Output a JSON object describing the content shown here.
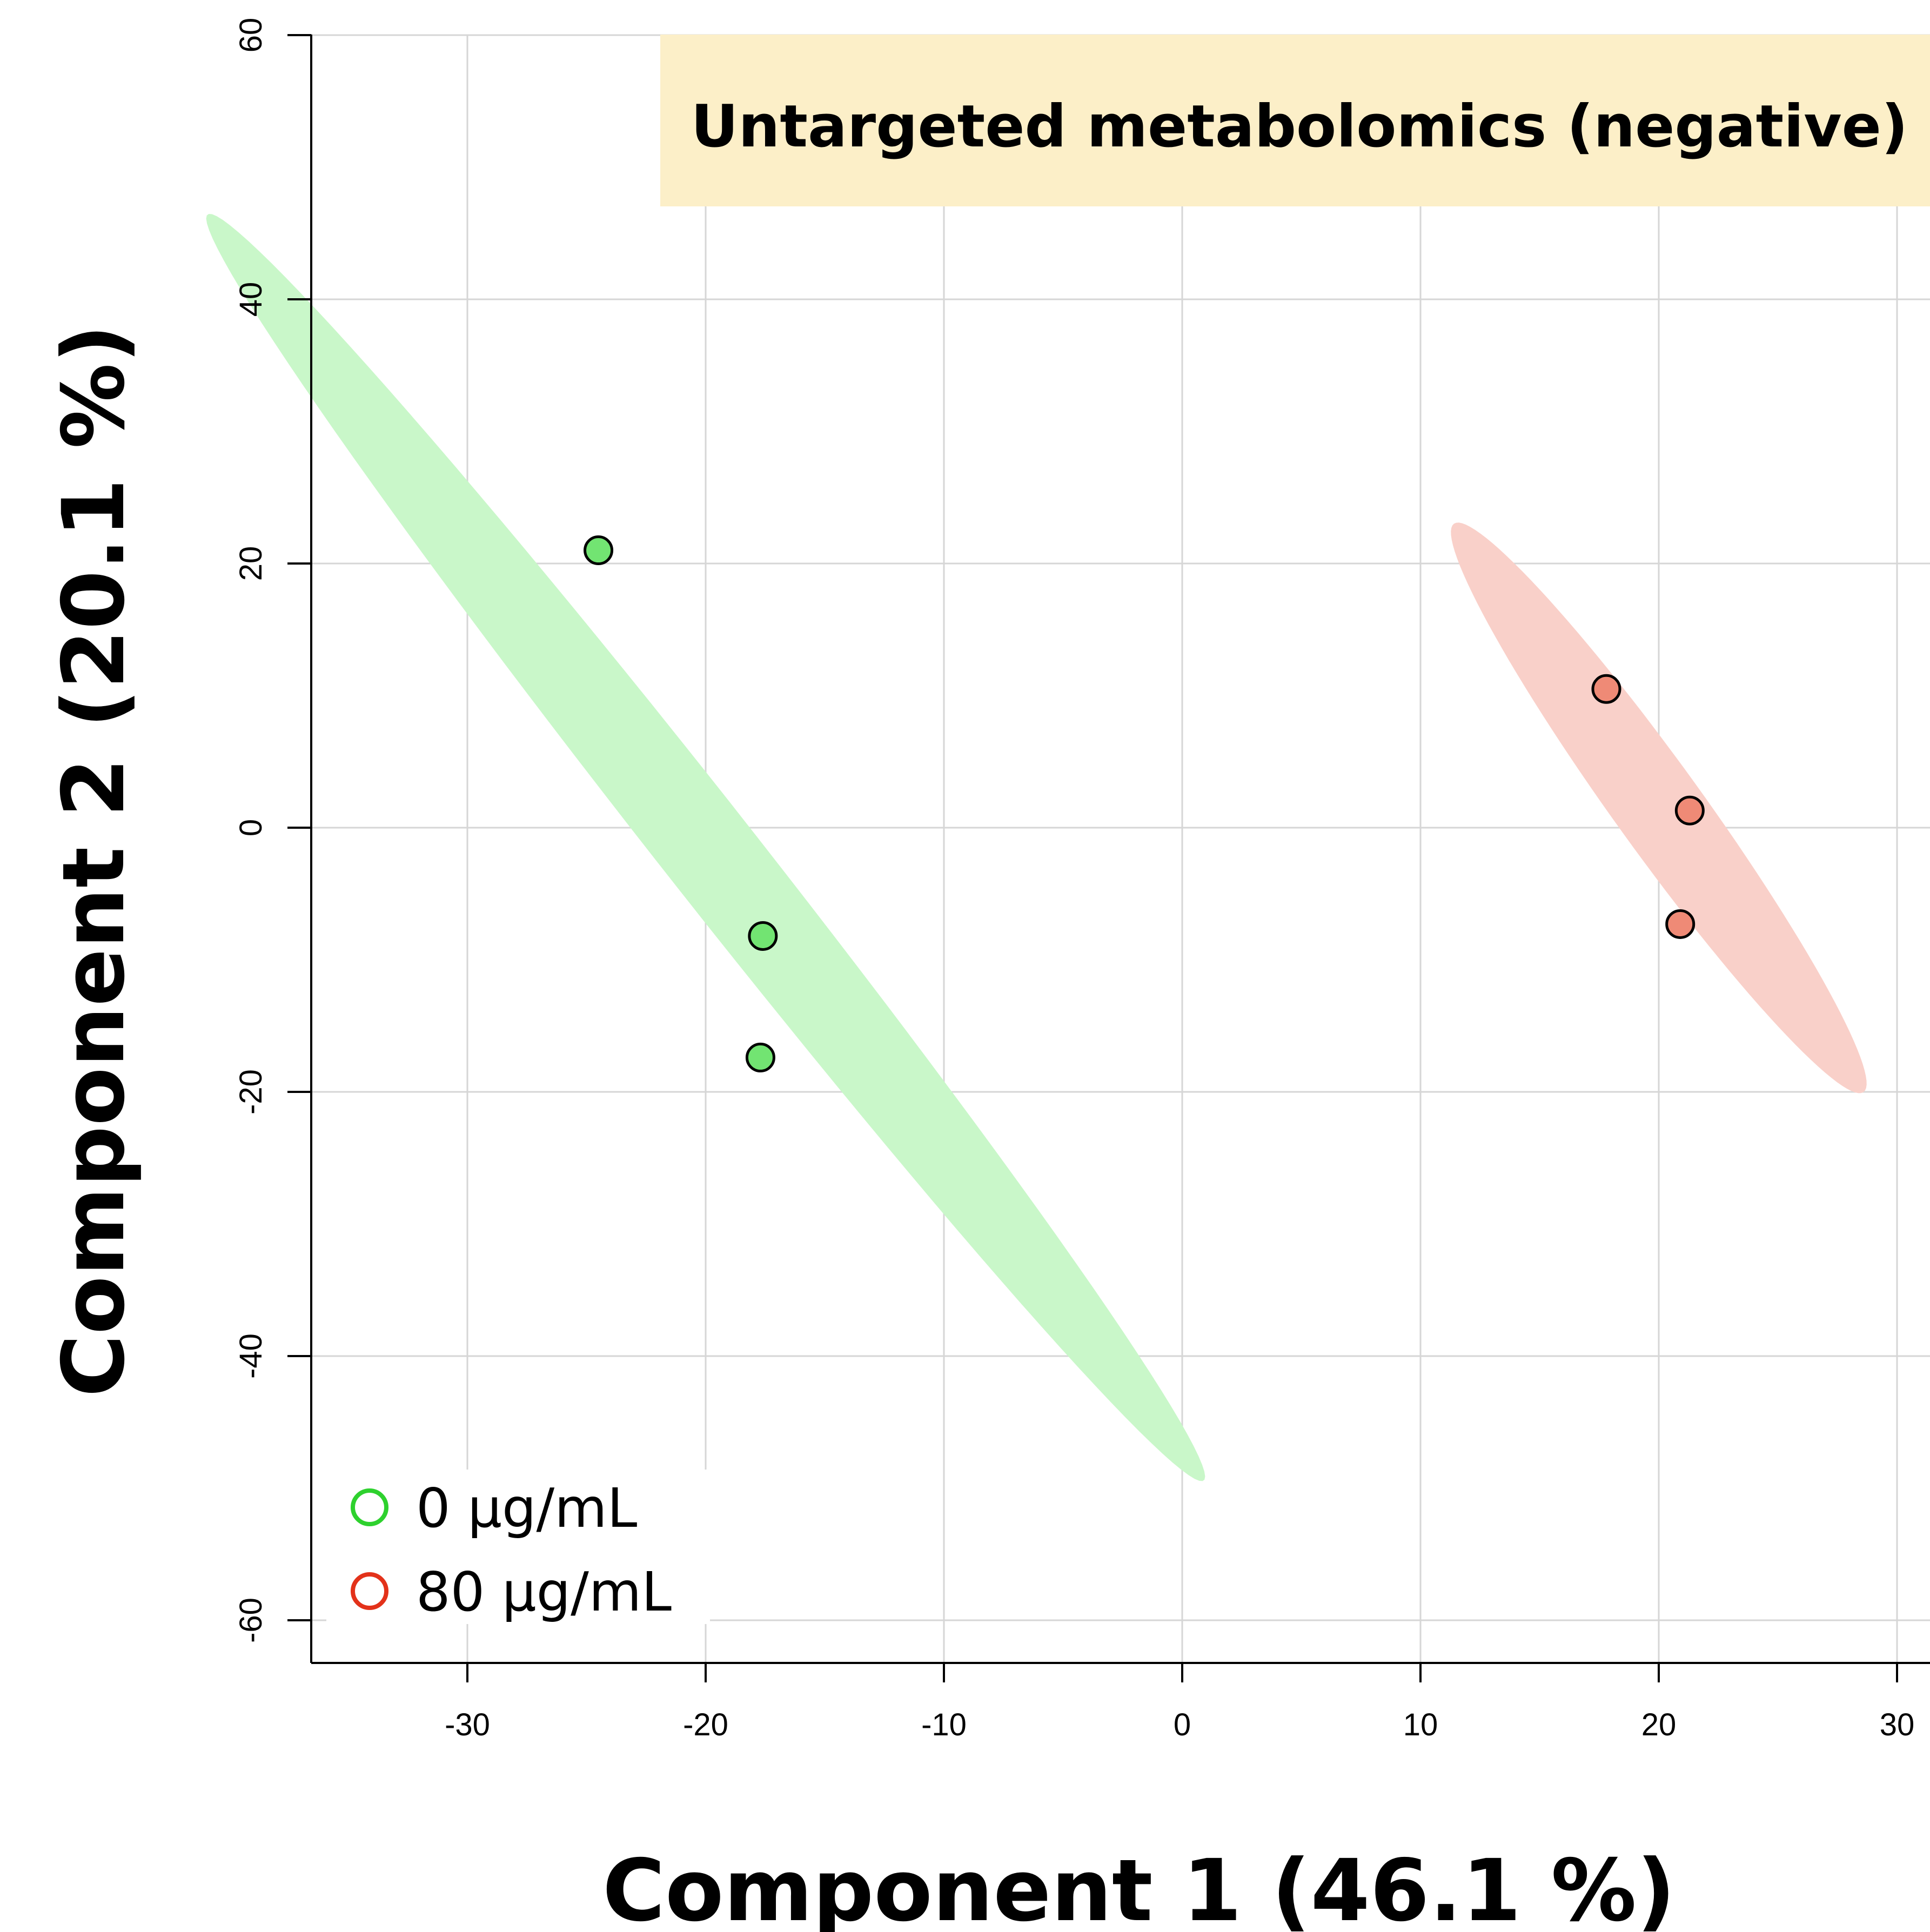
{
  "chart_data": {
    "type": "scatter",
    "title": "Untargeted metabolomics (negative)",
    "xlabel": "Component 1 (46.1 %)",
    "ylabel": "Component 2 (20.1 %)",
    "xlim": [
      -36.6,
      31
    ],
    "ylim": [
      -62.5,
      60
    ],
    "xticks": [
      -30,
      -20,
      -10,
      0,
      10,
      20,
      30
    ],
    "yticks": [
      -60,
      -40,
      -20,
      0,
      20,
      40,
      60
    ],
    "xtick_labels": [
      "-30",
      "-20",
      "-10",
      "0",
      "10",
      "20",
      "30"
    ],
    "ytick_labels": [
      "-60",
      "-40",
      "-20",
      "0",
      "20",
      "40",
      "60"
    ],
    "grid": true,
    "legend_position": "bottom-left",
    "series": [
      {
        "name": "0 μg/mL",
        "color": "#2ed12e",
        "point_fill": "#72e472",
        "ellipse_fill": "#c9f7c9",
        "points": [
          {
            "x": -24.5,
            "y": 21.0
          },
          {
            "x": -17.6,
            "y": -8.2
          },
          {
            "x": -17.7,
            "y": -17.4
          }
        ],
        "ellipse": {
          "cx": -20.0,
          "cy": -1.5,
          "semi_major": 52.3,
          "semi_minor": 2.3,
          "tilt_deg": 113.5
        }
      },
      {
        "name": "80 μg/mL",
        "color": "#e3321a",
        "point_fill": "#ef8a76",
        "ellipse_fill": "#f9d0c9",
        "points": [
          {
            "x": 17.8,
            "y": 10.5
          },
          {
            "x": 21.3,
            "y": 1.3
          },
          {
            "x": 20.9,
            "y": -7.3
          }
        ],
        "ellipse": {
          "cx": 20.0,
          "cy": 1.5,
          "semi_major": 23.2,
          "semi_minor": 2.1,
          "tilt_deg": 111.5
        }
      }
    ]
  }
}
